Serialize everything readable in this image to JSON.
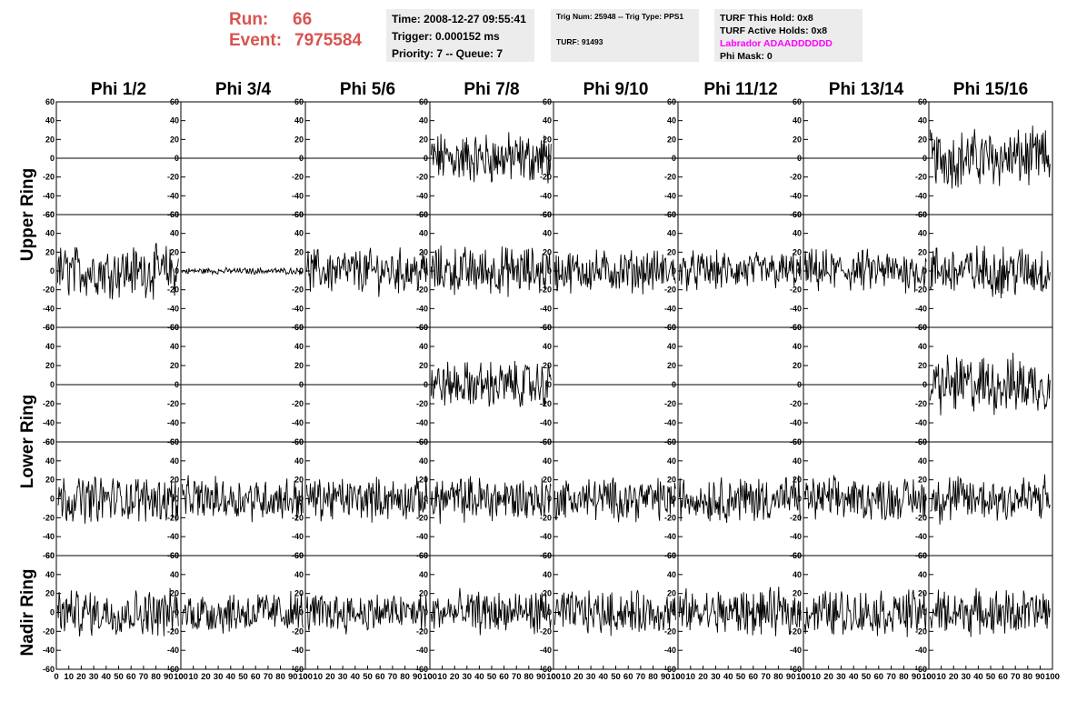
{
  "header": {
    "run_label": "Run:",
    "run_value": "66",
    "event_label": "Event:",
    "event_value": "7975584",
    "time_line": "Time: 2008-12-27 09:55:41",
    "trigger_line": "Trigger: 0.000152 ms",
    "priority_line": "Priority: 7 -- Queue: 7",
    "trig_line": "Trig Num: 25948 -- Trig Type: PPS1",
    "turf_line": "TURF: 91493",
    "turf_hold": "TURF This Hold: 0x8",
    "turf_active": "TURF Active Holds: 0x8",
    "labrador": "Labrador ADAADDDDDD",
    "phi_mask": "Phi Mask: 0"
  },
  "colors": {
    "header_red": "#d9534f",
    "labrador_magenta": "#ff00ff",
    "panel_bg": "#ececec",
    "trace": "#000000"
  },
  "chart_data": {
    "type": "line",
    "columns": [
      "Phi 1/2",
      "Phi 3/4",
      "Phi 5/6",
      "Phi 7/8",
      "Phi 9/10",
      "Phi 11/12",
      "Phi 13/14",
      "Phi 15/16"
    ],
    "ring_labels": [
      "Upper Ring",
      "Lower Ring",
      "Nadir Ring"
    ],
    "ylim": [
      -60,
      60
    ],
    "xlim": [
      0,
      100
    ],
    "y_ticks": [
      "60",
      "40",
      "20",
      "0",
      "-20",
      "-40",
      "-60"
    ],
    "x_ticks": [
      "0",
      "10",
      "20",
      "30",
      "40",
      "50",
      "60",
      "70",
      "80",
      "90",
      "100"
    ],
    "rows": [
      {
        "ring": "Upper Ring",
        "amplitudes": [
          0,
          0,
          0,
          16,
          0,
          0,
          0,
          18
        ]
      },
      {
        "ring": "Upper Ring",
        "amplitudes": [
          16,
          2,
          14,
          15,
          13,
          12,
          13,
          16
        ]
      },
      {
        "ring": "Lower Ring",
        "amplitudes": [
          0,
          0,
          0,
          14,
          0,
          0,
          0,
          18
        ]
      },
      {
        "ring": "Lower Ring",
        "amplitudes": [
          14,
          13,
          13,
          14,
          13,
          14,
          13,
          15
        ]
      },
      {
        "ring": "Nadir Ring",
        "amplitudes": [
          14,
          13,
          12,
          13,
          13,
          14,
          14,
          14
        ]
      }
    ]
  }
}
